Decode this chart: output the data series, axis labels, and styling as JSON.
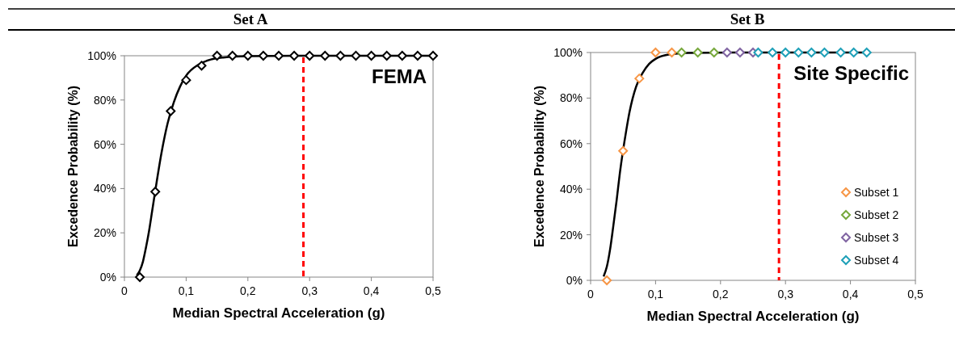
{
  "chart_data": [
    {
      "type": "scatter",
      "title": "Set A",
      "xlabel": "Median Spectral Acceleration (g)",
      "ylabel": "Excedence Probability (%)",
      "xlim": [
        0,
        0.5
      ],
      "xticks": [
        0,
        {
          "value": 0.1,
          "label": "0,1"
        },
        {
          "value": 0.2,
          "label": "0,2"
        },
        {
          "value": 0.3,
          "label": "0,3"
        },
        {
          "value": 0.4,
          "label": "0,4"
        },
        {
          "value": 0.5,
          "label": "0,5"
        }
      ],
      "ylim": [
        0,
        100
      ],
      "yticks": [
        {
          "value": 0,
          "label": "0%"
        },
        {
          "value": 20,
          "label": "20%"
        },
        {
          "value": 40,
          "label": "40%"
        },
        {
          "value": 60,
          "label": "60%"
        },
        {
          "value": 80,
          "label": "80%"
        },
        {
          "value": 100,
          "label": "100%"
        }
      ],
      "annotations": [
        "FEMA"
      ],
      "legend": false,
      "ref_lines": [
        {
          "axis": "x",
          "value": 0.29,
          "color": "#ff0000",
          "line_style": "dashed"
        }
      ],
      "series": [
        {
          "type": "line",
          "color": "#000000",
          "marker": "none",
          "line_style": "solid",
          "x": [
            0.02,
            0.025,
            0.03,
            0.035,
            0.04,
            0.045,
            0.05,
            0.06,
            0.07,
            0.08,
            0.09,
            0.1,
            0.12,
            0.14,
            0.16,
            0.2,
            0.3,
            0.5
          ],
          "values": [
            0.8,
            3,
            7,
            13.5,
            21,
            30,
            39,
            56,
            69.5,
            79,
            86,
            91,
            96,
            98.3,
            99.2,
            99.8,
            100,
            100
          ]
        },
        {
          "type": "scatter",
          "color": "#000000",
          "marker": "diamond",
          "x": [
            0.025,
            0.05,
            0.075,
            0.1,
            0.125,
            0.15,
            0.175,
            0.2,
            0.225,
            0.25,
            0.275,
            0.3,
            0.325,
            0.35,
            0.375,
            0.4,
            0.425,
            0.45,
            0.475,
            0.5
          ],
          "values": [
            0,
            38.6,
            75,
            89,
            95.5,
            100,
            100,
            100,
            100,
            100,
            100,
            100,
            100,
            100,
            100,
            100,
            100,
            100,
            100,
            100
          ]
        }
      ]
    },
    {
      "type": "scatter",
      "title": "Set B",
      "xlabel": "Median Spectral Acceleration (g)",
      "ylabel": "Excedence Probability (%)",
      "xlim": [
        0,
        0.5
      ],
      "xticks": [
        0,
        {
          "value": 0.1,
          "label": "0,1"
        },
        {
          "value": 0.2,
          "label": "0,2"
        },
        {
          "value": 0.3,
          "label": "0,3"
        },
        {
          "value": 0.4,
          "label": "0,4"
        },
        {
          "value": 0.5,
          "label": "0,5"
        }
      ],
      "ylim": [
        0,
        100
      ],
      "yticks": [
        {
          "value": 0,
          "label": "0%"
        },
        {
          "value": 20,
          "label": "20%"
        },
        {
          "value": 40,
          "label": "40%"
        },
        {
          "value": 60,
          "label": "60%"
        },
        {
          "value": 80,
          "label": "80%"
        },
        {
          "value": 100,
          "label": "100%"
        }
      ],
      "annotations": [
        "Site Specific"
      ],
      "legend": "bottom right",
      "ref_lines": [
        {
          "axis": "x",
          "value": 0.29,
          "color": "#ff0000",
          "line_style": "dashed"
        }
      ],
      "series": [
        {
          "type": "line",
          "color": "#000000",
          "marker": "none",
          "line_style": "solid",
          "x": [
            0.02,
            0.025,
            0.03,
            0.035,
            0.04,
            0.045,
            0.055,
            0.06,
            0.07,
            0.08,
            0.09,
            0.1,
            0.12,
            0.15,
            0.22,
            0.43
          ],
          "values": [
            1.7,
            6,
            13.6,
            24,
            35,
            47,
            66,
            74,
            85,
            91,
            95,
            97.2,
            99.1,
            99.8,
            100,
            100
          ]
        },
        {
          "type": "scatter",
          "name": "Subset 1",
          "color": "#f79646",
          "marker": "diamond",
          "x": [
            0.025,
            0.05,
            0.075,
            0.1,
            0.125
          ],
          "values": [
            0,
            56.8,
            88.6,
            100,
            100
          ]
        },
        {
          "type": "scatter",
          "name": "Subset 2",
          "color": "#77a83c",
          "marker": "diamond",
          "x": [
            0.14,
            0.165,
            0.19
          ],
          "values": [
            100,
            100,
            100
          ]
        },
        {
          "type": "scatter",
          "name": "Subset 3",
          "color": "#8064a2",
          "marker": "diamond",
          "x": [
            0.21,
            0.23,
            0.25
          ],
          "values": [
            100,
            100,
            100
          ]
        },
        {
          "type": "scatter",
          "name": "Subset 4",
          "color": "#1fa0b8",
          "marker": "diamond",
          "x": [
            0.258,
            0.28,
            0.3,
            0.32,
            0.34,
            0.36,
            0.385,
            0.405,
            0.425
          ],
          "values": [
            100,
            100,
            100,
            100,
            100,
            100,
            100,
            100,
            100
          ]
        }
      ]
    }
  ]
}
